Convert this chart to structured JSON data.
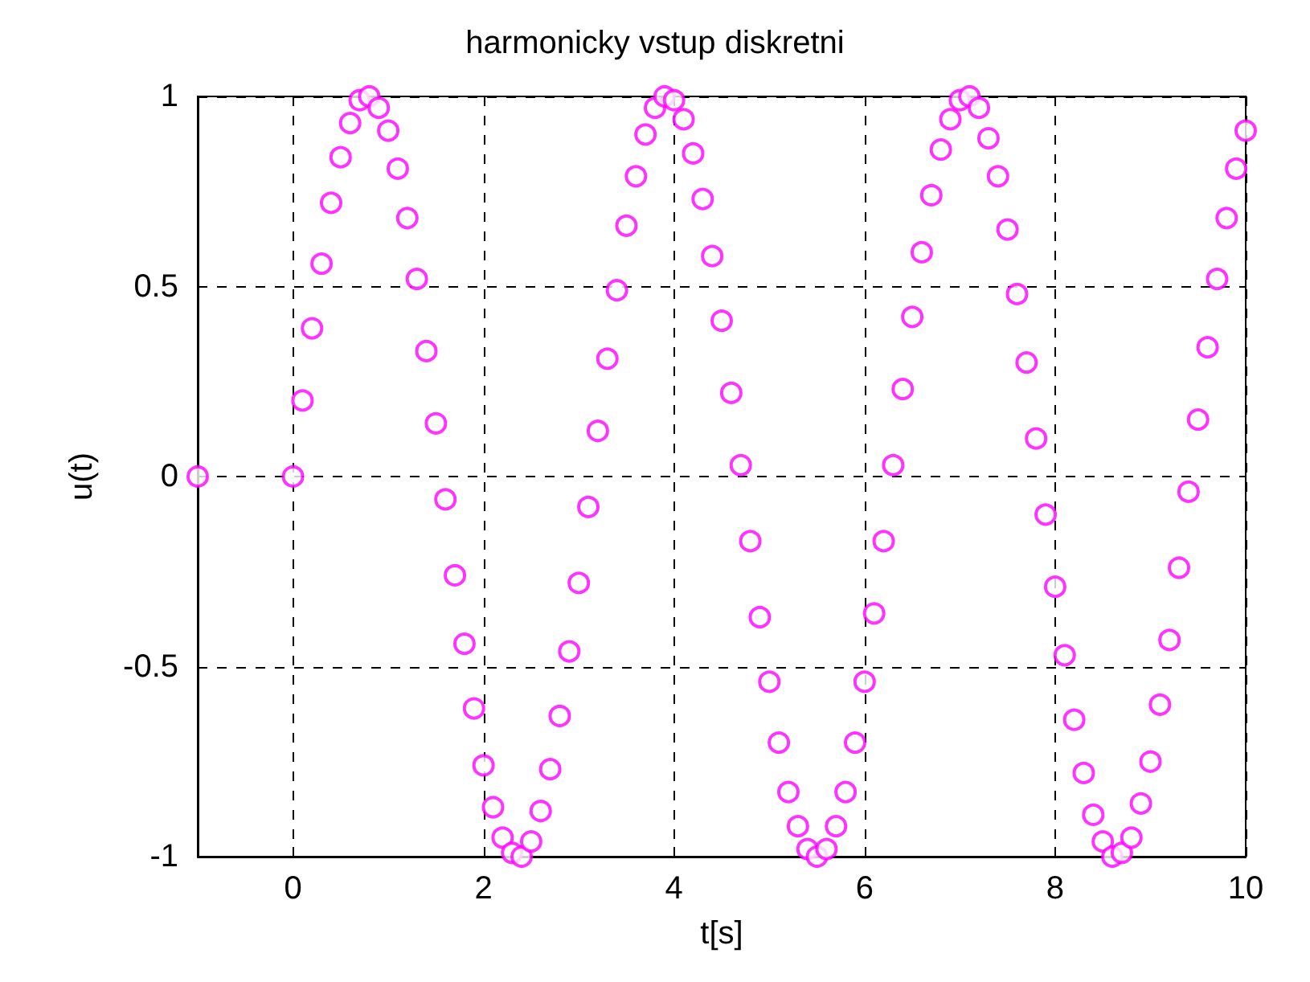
{
  "chart_data": {
    "type": "scatter",
    "title": "harmonicky vstup diskretni",
    "xlabel": "t[s]",
    "ylabel": "u(t)",
    "x": [
      -1,
      0,
      0.1,
      0.2,
      0.3,
      0.4,
      0.5,
      0.6,
      0.7,
      0.8,
      0.9,
      1,
      1.1,
      1.2,
      1.3,
      1.4,
      1.5,
      1.6,
      1.7,
      1.8,
      1.9,
      2,
      2.1,
      2.2,
      2.3,
      2.4,
      2.5,
      2.6,
      2.7,
      2.8,
      2.9,
      3,
      3.1,
      3.2,
      3.3,
      3.4,
      3.5,
      3.6,
      3.7,
      3.8,
      3.9,
      4,
      4.1,
      4.2,
      4.3,
      4.4,
      4.5,
      4.6,
      4.7,
      4.8,
      4.9,
      5,
      5.1,
      5.2,
      5.3,
      5.4,
      5.5,
      5.6,
      5.7,
      5.8,
      5.9,
      6,
      6.1,
      6.2,
      6.3,
      6.4,
      6.5,
      6.6,
      6.7,
      6.8,
      6.9,
      7,
      7.1,
      7.2,
      7.3,
      7.4,
      7.5,
      7.6,
      7.7,
      7.8,
      7.9,
      8,
      8.1,
      8.2,
      8.3,
      8.4,
      8.5,
      8.6,
      8.7,
      8.8,
      8.9,
      9,
      9.1,
      9.2,
      9.3,
      9.4,
      9.5,
      9.6,
      9.7,
      9.8,
      9.9,
      10
    ],
    "series": [
      {
        "color": "#ff00ff",
        "values": [
          0,
          0,
          0.2,
          0.39,
          0.56,
          0.72,
          0.84,
          0.93,
          0.99,
          1,
          0.97,
          0.91,
          0.81,
          0.68,
          0.52,
          0.33,
          0.14,
          -0.06,
          -0.26,
          -0.44,
          -0.61,
          -0.76,
          -0.87,
          -0.95,
          -0.99,
          -1,
          -0.96,
          -0.88,
          -0.77,
          -0.63,
          -0.46,
          -0.28,
          -0.08,
          0.12,
          0.31,
          0.49,
          0.66,
          0.79,
          0.9,
          0.97,
          1,
          0.99,
          0.94,
          0.85,
          0.73,
          0.58,
          0.41,
          0.22,
          0.03,
          -0.17,
          -0.37,
          -0.54,
          -0.7,
          -0.83,
          -0.92,
          -0.98,
          -1,
          -0.98,
          -0.92,
          -0.83,
          -0.7,
          -0.54,
          -0.36,
          -0.17,
          0.03,
          0.23,
          0.42,
          0.59,
          0.74,
          0.86,
          0.94,
          0.99,
          1,
          0.97,
          0.89,
          0.79,
          0.65,
          0.48,
          0.3,
          0.1,
          -0.1,
          -0.29,
          -0.47,
          -0.64,
          -0.78,
          -0.89,
          -0.96,
          -1,
          -0.99,
          -0.95,
          -0.86,
          -0.75,
          -0.6,
          -0.43,
          -0.24,
          -0.04,
          0.15,
          0.34,
          0.52,
          0.68,
          0.81,
          0.91
        ]
      }
    ],
    "xlim": [
      -1,
      10
    ],
    "xticks": [
      0,
      2,
      4,
      6,
      8,
      10
    ],
    "ylim": [
      -1,
      1
    ],
    "yticks": [
      -1,
      -0.5,
      0,
      0.5,
      1
    ],
    "grid": true,
    "marker": "circle"
  }
}
